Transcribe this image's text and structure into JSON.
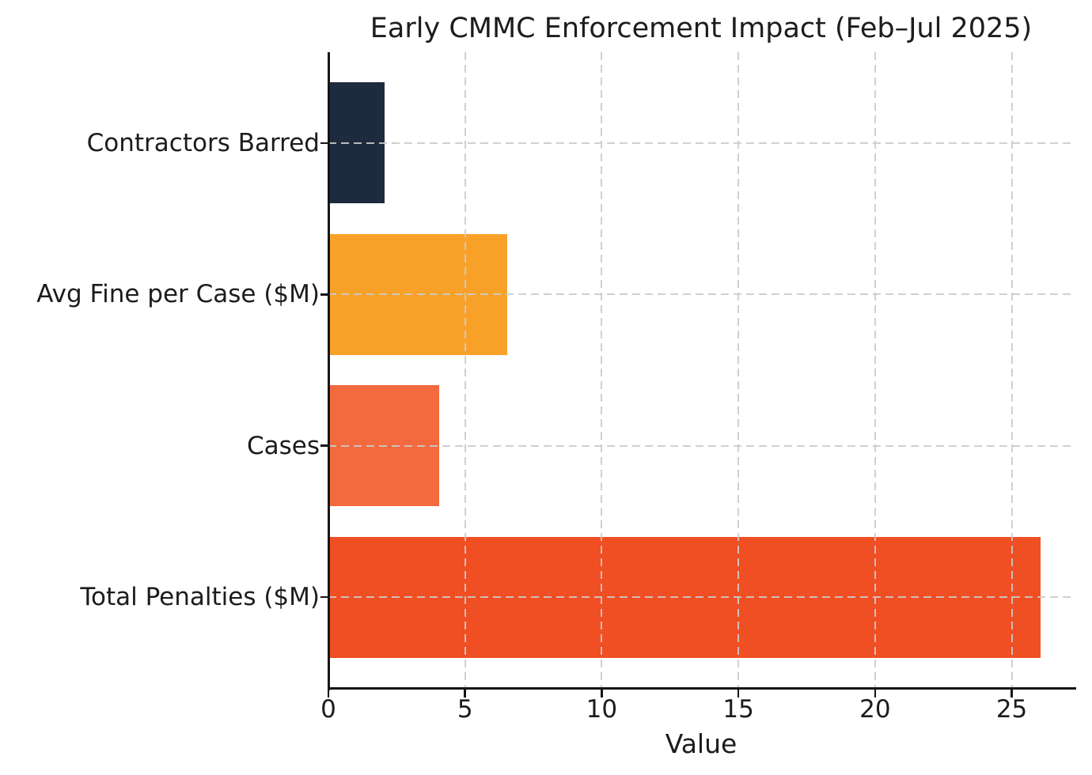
{
  "chart_data": {
    "type": "bar",
    "orientation": "horizontal",
    "title": "Early CMMC Enforcement Impact (Feb–Jul 2025)",
    "xlabel": "Value",
    "ylabel": "",
    "categories": [
      "Contractors Barred",
      "Avg Fine per Case ($M)",
      "Cases",
      "Total Penalties ($M)"
    ],
    "values": [
      2,
      6.5,
      4,
      26
    ],
    "bar_colors": [
      "#1e2a3e",
      "#f8a129",
      "#f26a3e",
      "#f04e23"
    ],
    "xticks": [
      0,
      5,
      10,
      15,
      20,
      25
    ],
    "xlim": [
      0,
      27.3
    ],
    "grid": "dashed, both axes, drawn above bars",
    "grid_color": "#cbcbcb",
    "axis_color": "#151515",
    "text_color": "#1c1c1c",
    "legend": false
  }
}
